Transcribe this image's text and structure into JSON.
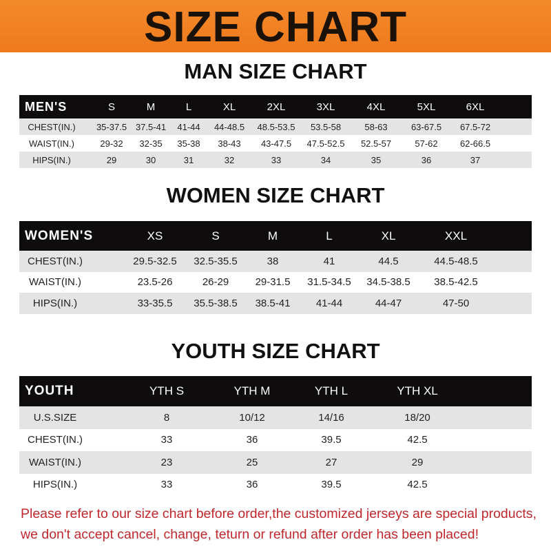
{
  "banner": {
    "title": "SIZE CHART",
    "color": "#f07f22"
  },
  "men": {
    "title": "MAN SIZE CHART",
    "header": [
      "MEN'S",
      "S",
      "M",
      "L",
      "XL",
      "2XL",
      "3XL",
      "4XL",
      "5XL",
      "6XL"
    ],
    "rows": [
      [
        "CHEST(IN.)",
        "35-37.5",
        "37.5-41",
        "41-44",
        "44-48.5",
        "48.5-53.5",
        "53.5-58",
        "58-63",
        "63-67.5",
        "67.5-72"
      ],
      [
        "WAIST(IN.)",
        "29-32",
        "32-35",
        "35-38",
        "38-43",
        "43-47.5",
        "47.5-52.5",
        "52.5-57",
        "57-62",
        "62-66.5"
      ],
      [
        "HIPS(IN.)",
        "29",
        "30",
        "31",
        "32",
        "33",
        "34",
        "35",
        "36",
        "37"
      ]
    ]
  },
  "women": {
    "title": "WOMEN SIZE CHART",
    "header": [
      "WOMEN'S",
      "XS",
      "S",
      "M",
      "L",
      "XL",
      "XXL"
    ],
    "rows": [
      [
        "CHEST(IN.)",
        "29.5-32.5",
        "32.5-35.5",
        "38",
        "41",
        "44.5",
        "44.5-48.5"
      ],
      [
        "WAIST(IN.)",
        "23.5-26",
        "26-29",
        "29-31.5",
        "31.5-34.5",
        "34.5-38.5",
        "38.5-42.5"
      ],
      [
        "HIPS(IN.)",
        "33-35.5",
        "35.5-38.5",
        "38.5-41",
        "41-44",
        "44-47",
        "47-50"
      ]
    ]
  },
  "youth": {
    "title": "YOUTH SIZE CHART",
    "header": [
      "YOUTH",
      "YTH S",
      "YTH M",
      "YTH L",
      "YTH XL"
    ],
    "rows": [
      [
        "U.S.SIZE",
        "8",
        "10/12",
        "14/16",
        "18/20"
      ],
      [
        "CHEST(IN.)",
        "33",
        "36",
        "39.5",
        "42.5"
      ],
      [
        "WAIST(IN.)",
        "23",
        "25",
        "27",
        "29"
      ],
      [
        "HIPS(IN.)",
        "33",
        "36",
        "39.5",
        "42.5"
      ]
    ]
  },
  "notice": {
    "line1": "Please refer to our size chart before order,the customized jerseys are special products,",
    "line2": "we don't accept cancel, change, teturn or refund after order has been placed!",
    "color": "#c0272d"
  }
}
